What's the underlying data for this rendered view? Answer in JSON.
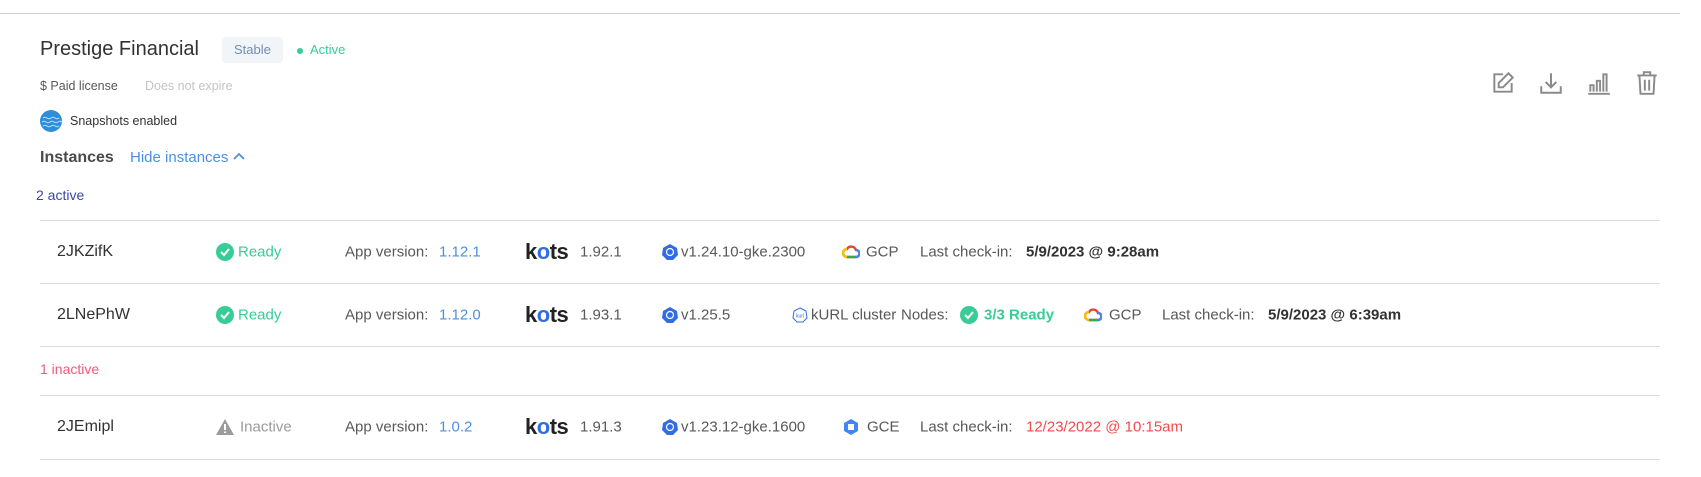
{
  "customer": {
    "name": "Prestige Financial",
    "channel": "Stable",
    "status": "Active",
    "license_type": "$ Paid license",
    "expiry": "Does not expire",
    "snapshots": "Snapshots enabled"
  },
  "actions": [
    "edit-icon",
    "download-icon",
    "analytics-icon",
    "trash-icon"
  ],
  "instances": {
    "heading": "Instances",
    "toggle": "Hide instances",
    "active_label": "2 active",
    "inactive_label": "1 inactive"
  },
  "labels": {
    "app_version": "App version:",
    "last_checkin": "Last check-in:",
    "nodes": "Nodes:",
    "kots": "kots"
  },
  "rows": [
    {
      "id": "2JKZifK",
      "status": "Ready",
      "app_version": "1.12.1",
      "kots_version": "1.92.1",
      "k8s": "v1.24.10-gke.2300",
      "cloud": "GCP",
      "checkin": "5/9/2023 @ 9:28am"
    },
    {
      "id": "2LNePhW",
      "status": "Ready",
      "app_version": "1.12.0",
      "kots_version": "1.93.1",
      "k8s": "v1.25.5",
      "distribution": "kURL cluster",
      "nodes": "3/3 Ready",
      "cloud": "GCP",
      "checkin": "5/9/2023 @ 6:39am"
    },
    {
      "id": "2JEmipl",
      "status": "Inactive",
      "app_version": "1.0.2",
      "kots_version": "1.91.3",
      "k8s": "v1.23.12-gke.1600",
      "cloud": "GCE",
      "checkin": "12/23/2022 @ 10:15am"
    }
  ],
  "colors": {
    "active": "#38cc97",
    "link": "#4a90e2",
    "inactive": "#f05a78",
    "group_active": "#3b47a8",
    "stale": "#f44a4a"
  }
}
